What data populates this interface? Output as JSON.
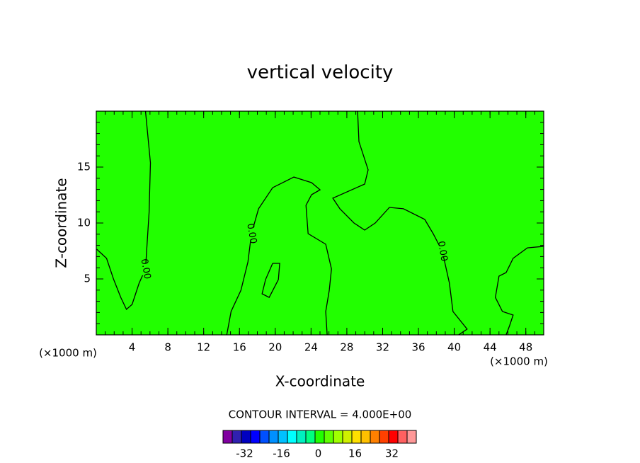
{
  "chart_data": {
    "type": "contour",
    "title": "vertical velocity",
    "x_label": "X-coordinate",
    "y_label": "Z-coordinate",
    "x_unit": "(×1000 m)",
    "annotation": "CONTOUR INTERVAL = 4.000E+00",
    "xlim": [
      0,
      50
    ],
    "ylim": [
      0,
      20
    ],
    "xticks": [
      4,
      8,
      12,
      16,
      20,
      24,
      28,
      32,
      36,
      40,
      44,
      48
    ],
    "yticks": [
      5,
      10,
      15
    ],
    "background_color": "#22ff00",
    "line_color": "#000000",
    "contours": [
      {
        "level": 0,
        "label": "0.00",
        "points": [
          [
            0.05,
            7.66
          ],
          [
            1.15,
            6.84
          ],
          [
            1.95,
            4.94
          ],
          [
            2.74,
            3.35
          ],
          [
            3.37,
            2.28
          ],
          [
            4.0,
            2.72
          ],
          [
            4.79,
            4.62
          ],
          [
            5.5,
            5.89
          ],
          [
            5.9,
            10.95
          ],
          [
            6.05,
            15.38
          ],
          [
            5.5,
            20
          ]
        ]
      },
      {
        "level": 0,
        "label": "0.00",
        "points": [
          [
            14.58,
            0
          ],
          [
            15.06,
            2.09
          ],
          [
            16.16,
            3.99
          ],
          [
            16.95,
            6.52
          ],
          [
            17.34,
            9.05
          ],
          [
            18.13,
            11.27
          ],
          [
            19.71,
            13.16
          ],
          [
            22.08,
            14.11
          ],
          [
            24.06,
            13.61
          ],
          [
            25.01,
            12.97
          ],
          [
            24.06,
            12.53
          ],
          [
            23.43,
            11.58
          ],
          [
            23.67,
            9.05
          ],
          [
            25.64,
            8.1
          ],
          [
            26.28,
            5.89
          ],
          [
            26.04,
            3.99
          ],
          [
            25.64,
            2.09
          ],
          [
            25.8,
            0
          ]
        ]
      },
      {
        "level": 0,
        "label": "0.00",
        "points": [
          [
            29.2,
            20
          ],
          [
            29.35,
            17.28
          ],
          [
            30.38,
            14.75
          ],
          [
            29.99,
            13.48
          ],
          [
            26.43,
            12.22
          ],
          [
            27.22,
            11.27
          ],
          [
            28.8,
            10.0
          ],
          [
            29.99,
            9.37
          ],
          [
            31.17,
            10.0
          ],
          [
            32.75,
            11.39
          ],
          [
            34.33,
            11.27
          ],
          [
            36.7,
            10.32
          ],
          [
            37.64,
            9.05
          ],
          [
            38.67,
            7.47
          ],
          [
            39.46,
            4.62
          ],
          [
            39.86,
            2.09
          ],
          [
            41.44,
            0.51
          ],
          [
            40.49,
            0
          ]
        ]
      },
      {
        "level": 0,
        "points": [
          [
            50,
            7.91
          ],
          [
            48.17,
            7.78
          ],
          [
            46.58,
            6.84
          ],
          [
            45.8,
            5.57
          ],
          [
            45.0,
            5.25
          ],
          [
            44.6,
            3.35
          ],
          [
            45.39,
            2.09
          ],
          [
            46.58,
            1.77
          ],
          [
            46.19,
            0.82
          ],
          [
            45.8,
            0
          ]
        ]
      },
      {
        "level": 0,
        "points": [
          [
            19.71,
            6.39
          ],
          [
            20.5,
            6.39
          ],
          [
            20.35,
            4.94
          ],
          [
            19.32,
            3.35
          ],
          [
            18.53,
            3.67
          ],
          [
            18.92,
            4.94
          ],
          [
            19.71,
            6.39
          ]
        ]
      }
    ],
    "colorbar": {
      "values": [
        -40,
        -36,
        -32,
        -28,
        -24,
        -20,
        -16,
        -12,
        -8,
        -4,
        0,
        4,
        8,
        12,
        16,
        20,
        24,
        28,
        32,
        36,
        40
      ],
      "colors": [
        "#8000a0",
        "#3020b0",
        "#0000c0",
        "#0000ff",
        "#0050ff",
        "#0090ff",
        "#00c0ff",
        "#00ffff",
        "#00f0c0",
        "#00ff80",
        "#22ff00",
        "#60ff00",
        "#a0ff00",
        "#d0f000",
        "#ffe000",
        "#ffc000",
        "#ff8000",
        "#ff4000",
        "#ff0000",
        "#ff6060",
        "#ff9898"
      ],
      "ticks": [
        -32,
        -16,
        0,
        16,
        32
      ]
    }
  }
}
